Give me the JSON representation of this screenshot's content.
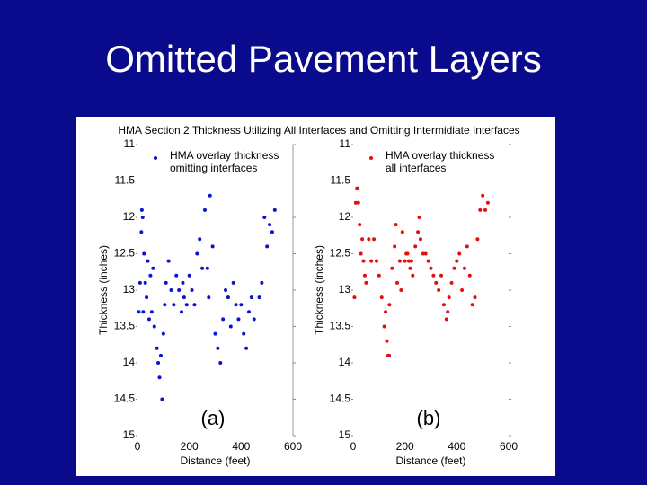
{
  "title": "Omitted Pavement Layers",
  "figure_title": "HMA Section 2 Thickness Utilizing All Interfaces and Omitting Intermidiate Interfaces",
  "chart_data": [
    {
      "type": "scatter",
      "label": "(a)",
      "x_label": "Distance (feet)",
      "y_label": "Thickness (inches)",
      "xlim": [
        0,
        600
      ],
      "xticks": [
        0,
        200,
        400,
        600
      ],
      "ylim": [
        11,
        15
      ],
      "yticks": [
        11,
        11.5,
        12,
        12.5,
        13,
        13.5,
        14,
        14.5,
        15
      ],
      "y_inverted": true,
      "series": [
        {
          "name": "HMA overlay thickness omitting interfaces",
          "color": "#0a14c8",
          "x": [
            17,
            20,
            15,
            25,
            10,
            22,
            5,
            30,
            35,
            40,
            45,
            50,
            55,
            60,
            65,
            75,
            80,
            85,
            90,
            95,
            100,
            105,
            110,
            120,
            130,
            140,
            150,
            160,
            170,
            175,
            180,
            190,
            200,
            210,
            220,
            230,
            240,
            250,
            260,
            270,
            275,
            280,
            290,
            300,
            310,
            320,
            330,
            340,
            350,
            360,
            370,
            380,
            390,
            400,
            410,
            420,
            430,
            440,
            450,
            470,
            480,
            490,
            500,
            510,
            520,
            530
          ],
          "values": [
            11.9,
            12.0,
            12.2,
            12.5,
            12.9,
            13.3,
            13.3,
            12.9,
            13.1,
            12.6,
            13.4,
            12.8,
            13.3,
            12.7,
            13.5,
            13.8,
            14.0,
            14.2,
            13.9,
            14.5,
            13.6,
            13.2,
            12.9,
            12.6,
            13.0,
            13.2,
            12.8,
            13.0,
            13.3,
            12.9,
            13.1,
            13.2,
            12.8,
            13.0,
            13.2,
            12.5,
            12.3,
            12.7,
            11.9,
            12.7,
            13.1,
            11.7,
            12.4,
            13.6,
            13.8,
            14.0,
            13.4,
            13.0,
            13.1,
            13.5,
            12.9,
            13.2,
            13.4,
            13.2,
            13.6,
            13.8,
            13.3,
            13.1,
            13.4,
            13.1,
            12.9,
            12.0,
            12.4,
            12.1,
            12.2,
            11.9
          ]
        }
      ]
    },
    {
      "type": "scatter",
      "label": "(b)",
      "x_label": "Distance (feet)",
      "y_label": "Thickness (inches)",
      "xlim": [
        0,
        600
      ],
      "xticks": [
        0,
        200,
        400,
        600
      ],
      "ylim": [
        11,
        15
      ],
      "yticks": [
        11,
        11.5,
        12,
        12.5,
        13,
        13.5,
        14,
        14.5,
        15
      ],
      "y_inverted": true,
      "series": [
        {
          "name": "HMA overlay thickness all interfaces",
          "color": "#e01010",
          "x": [
            5,
            10,
            15,
            20,
            25,
            30,
            35,
            40,
            45,
            50,
            60,
            70,
            80,
            90,
            100,
            110,
            120,
            125,
            130,
            135,
            139,
            140,
            150,
            160,
            165,
            170,
            180,
            185,
            190,
            200,
            205,
            210,
            215,
            220,
            225,
            230,
            240,
            250,
            255,
            260,
            270,
            280,
            290,
            300,
            310,
            320,
            330,
            340,
            350,
            360,
            365,
            370,
            380,
            390,
            400,
            410,
            420,
            430,
            440,
            450,
            460,
            470,
            480,
            490,
            500,
            510,
            520
          ],
          "values": [
            13.1,
            11.8,
            11.6,
            11.8,
            12.1,
            12.5,
            12.3,
            12.6,
            12.8,
            12.9,
            12.3,
            12.6,
            12.3,
            12.6,
            12.8,
            13.1,
            13.5,
            13.3,
            13.7,
            13.9,
            13.9,
            13.2,
            12.7,
            12.4,
            12.1,
            12.9,
            12.6,
            13.0,
            12.2,
            12.6,
            12.5,
            12.5,
            12.6,
            12.7,
            12.6,
            12.8,
            12.4,
            12.2,
            12.0,
            12.3,
            12.5,
            12.5,
            12.6,
            12.7,
            12.8,
            12.9,
            13.0,
            12.8,
            13.2,
            13.4,
            13.3,
            13.1,
            12.9,
            12.7,
            12.6,
            12.5,
            13.0,
            12.7,
            12.4,
            12.8,
            13.2,
            13.1,
            12.3,
            11.9,
            11.7,
            11.9,
            11.8
          ]
        }
      ]
    }
  ]
}
